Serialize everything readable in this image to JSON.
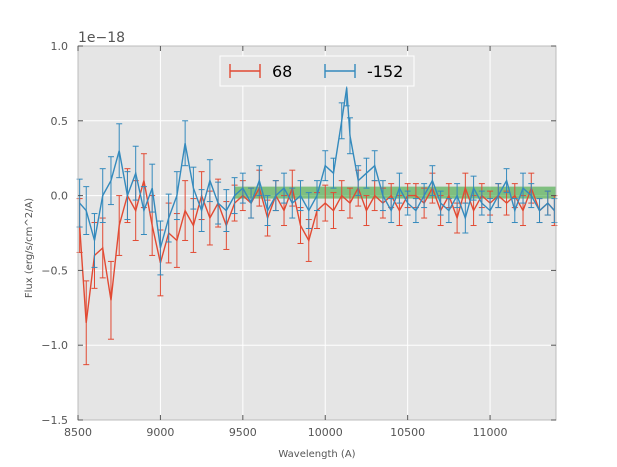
{
  "chart_data": {
    "type": "line",
    "title": "",
    "xlabel": "Wavelength (A)",
    "ylabel": "Flux (erg/s/cm^2/A)",
    "offset_text": "1e−18",
    "xlim": [
      8500,
      11400
    ],
    "ylim": [
      -1.5,
      1.0
    ],
    "xticks": [
      8500,
      9000,
      9500,
      10000,
      10500,
      11000
    ],
    "yticks": [
      -1.5,
      -1.0,
      -0.5,
      0.0,
      0.5,
      1.0
    ],
    "xtick_labels": [
      "8500",
      "9000",
      "9500",
      "10000",
      "10500",
      "11000"
    ],
    "ytick_labels": [
      "−1.5",
      "−1.0",
      "−0.5",
      "0.0",
      "0.5",
      "1.0"
    ],
    "grid": true,
    "legend_position": "top-center",
    "colors": {
      "background": "#e5e5e5",
      "grid": "#ffffff",
      "series_68": "#e24a33",
      "series_m152": "#348abd",
      "band": "#2ca02c"
    },
    "band": {
      "x_start": 9450,
      "x_end": 11400,
      "y_low": -0.02,
      "y_high": 0.06,
      "label": ""
    },
    "series": [
      {
        "name": "68",
        "color": "#e24a33",
        "x": [
          8510,
          8550,
          8600,
          8650,
          8700,
          8750,
          8800,
          8850,
          8900,
          8950,
          9000,
          9050,
          9100,
          9150,
          9200,
          9250,
          9300,
          9350,
          9400,
          9450,
          9500,
          9550,
          9600,
          9650,
          9700,
          9750,
          9800,
          9850,
          9900,
          9950,
          10000,
          10050,
          10100,
          10150,
          10200,
          10250,
          10300,
          10350,
          10400,
          10450,
          10500,
          10550,
          10600,
          10650,
          10700,
          10750,
          10800,
          10850,
          10900,
          10950,
          11000,
          11050,
          11100,
          11150,
          11200,
          11250,
          11300,
          11350,
          11390
        ],
        "y": [
          -0.2,
          -0.85,
          -0.4,
          -0.35,
          -0.7,
          -0.2,
          0.0,
          -0.1,
          0.1,
          -0.2,
          -0.45,
          -0.25,
          -0.3,
          -0.1,
          -0.2,
          0.0,
          -0.15,
          -0.05,
          -0.2,
          -0.05,
          0.0,
          -0.05,
          0.05,
          -0.15,
          0.0,
          -0.1,
          0.05,
          -0.2,
          -0.3,
          -0.1,
          -0.05,
          -0.1,
          0.0,
          -0.05,
          0.05,
          -0.1,
          0.0,
          -0.05,
          0.0,
          -0.1,
          0.0,
          0.0,
          -0.05,
          0.05,
          -0.1,
          0.0,
          -0.15,
          0.05,
          -0.1,
          0.0,
          -0.05,
          0.0,
          -0.05,
          0.0,
          -0.1,
          0.05,
          -0.1,
          -0.05,
          -0.1
        ],
        "err": [
          0.18,
          0.28,
          0.22,
          0.2,
          0.26,
          0.2,
          0.18,
          0.2,
          0.18,
          0.2,
          0.22,
          0.2,
          0.18,
          0.2,
          0.18,
          0.16,
          0.18,
          0.16,
          0.16,
          0.12,
          0.1,
          0.1,
          0.12,
          0.12,
          0.1,
          0.1,
          0.12,
          0.12,
          0.14,
          0.12,
          0.12,
          0.12,
          0.1,
          0.1,
          0.12,
          0.1,
          0.1,
          0.1,
          0.08,
          0.1,
          0.08,
          0.08,
          0.1,
          0.1,
          0.1,
          0.08,
          0.1,
          0.1,
          0.1,
          0.08,
          0.08,
          0.08,
          0.08,
          0.08,
          0.1,
          0.1,
          0.08,
          0.08,
          0.1
        ]
      },
      {
        "name": "-152",
        "color": "#348abd",
        "x": [
          8510,
          8550,
          8600,
          8650,
          8700,
          8750,
          8800,
          8850,
          8900,
          8950,
          9000,
          9050,
          9100,
          9150,
          9200,
          9250,
          9300,
          9350,
          9400,
          9450,
          9500,
          9550,
          9600,
          9650,
          9700,
          9750,
          9800,
          9850,
          9900,
          9950,
          10000,
          10050,
          10100,
          10130,
          10150,
          10200,
          10250,
          10300,
          10350,
          10400,
          10450,
          10500,
          10550,
          10600,
          10650,
          10700,
          10750,
          10800,
          10850,
          10900,
          10950,
          11000,
          11050,
          11100,
          11150,
          11200,
          11250,
          11300,
          11350,
          11390
        ],
        "y": [
          -0.05,
          -0.1,
          -0.3,
          0.0,
          0.1,
          0.3,
          0.0,
          0.15,
          -0.1,
          0.05,
          -0.35,
          -0.15,
          0.0,
          0.35,
          0.05,
          -0.1,
          0.1,
          -0.05,
          -0.1,
          0.0,
          0.05,
          -0.05,
          0.1,
          -0.1,
          0.0,
          0.05,
          -0.05,
          0.0,
          -0.1,
          0.0,
          0.2,
          0.15,
          0.5,
          0.72,
          0.4,
          0.1,
          0.15,
          0.2,
          0.0,
          -0.1,
          0.05,
          -0.05,
          -0.1,
          0.0,
          0.1,
          -0.05,
          -0.1,
          0.0,
          -0.15,
          0.05,
          -0.05,
          -0.1,
          0.0,
          0.1,
          -0.1,
          0.05,
          0.0,
          -0.1,
          -0.05,
          -0.1
        ],
        "err": [
          0.16,
          0.16,
          0.18,
          0.18,
          0.16,
          0.18,
          0.16,
          0.18,
          0.16,
          0.16,
          0.18,
          0.16,
          0.16,
          0.15,
          0.14,
          0.14,
          0.14,
          0.14,
          0.14,
          0.12,
          0.1,
          0.1,
          0.1,
          0.1,
          0.1,
          0.1,
          0.1,
          0.1,
          0.12,
          0.1,
          0.1,
          0.1,
          0.12,
          0.12,
          0.12,
          0.1,
          0.1,
          0.1,
          0.1,
          0.08,
          0.1,
          0.08,
          0.08,
          0.08,
          0.1,
          0.08,
          0.08,
          0.08,
          0.1,
          0.08,
          0.08,
          0.08,
          0.08,
          0.08,
          0.08,
          0.1,
          0.08,
          0.08,
          0.08,
          0.08
        ]
      }
    ]
  }
}
